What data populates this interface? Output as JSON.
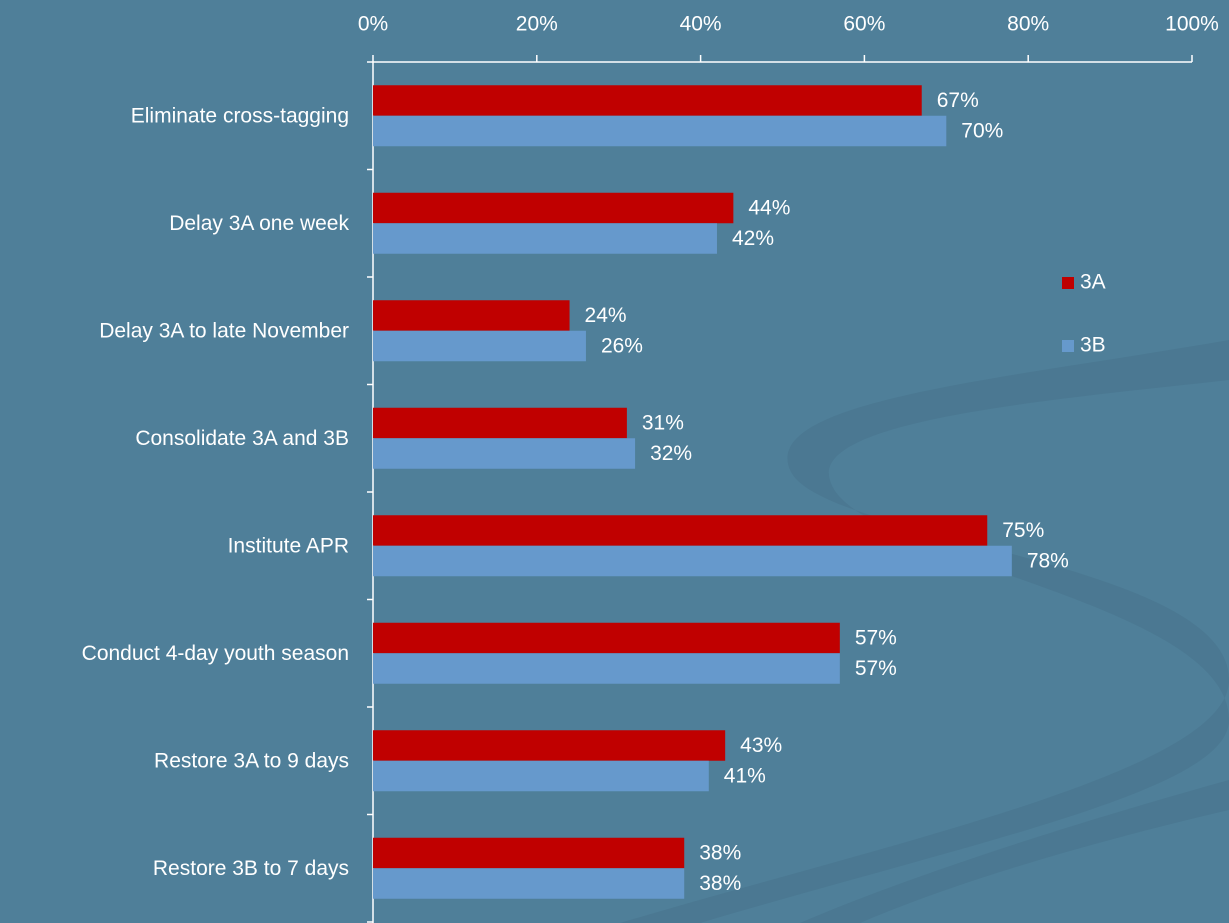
{
  "chart_data": {
    "type": "bar",
    "orientation": "horizontal",
    "categories": [
      "Eliminate cross-tagging",
      "Delay 3A one week",
      "Delay 3A to late November",
      "Consolidate 3A and 3B",
      "Institute APR",
      "Conduct 4-day youth season",
      "Restore 3A to 9 days",
      "Restore 3B to 7 days"
    ],
    "series": [
      {
        "name": "3A",
        "color": "#c00000",
        "values": [
          67,
          44,
          24,
          31,
          75,
          57,
          43,
          38
        ],
        "value_labels": [
          "67%",
          "44%",
          "24%",
          "31%",
          "75%",
          "57%",
          "43%",
          "38%"
        ]
      },
      {
        "name": "3B",
        "color": "#6699cc",
        "values": [
          70,
          42,
          26,
          32,
          78,
          57,
          41,
          38
        ],
        "value_labels": [
          "70%",
          "42%",
          "26%",
          "32%",
          "78%",
          "57%",
          "41%",
          "38%"
        ]
      }
    ],
    "xlim": [
      0,
      100
    ],
    "xticks": [
      {
        "value": 0,
        "label": "0%"
      },
      {
        "value": 20,
        "label": "20%"
      },
      {
        "value": 40,
        "label": "40%"
      },
      {
        "value": 60,
        "label": "60%"
      },
      {
        "value": 80,
        "label": "80%"
      },
      {
        "value": 100,
        "label": "100%"
      }
    ],
    "grid": false,
    "legend": "right"
  }
}
